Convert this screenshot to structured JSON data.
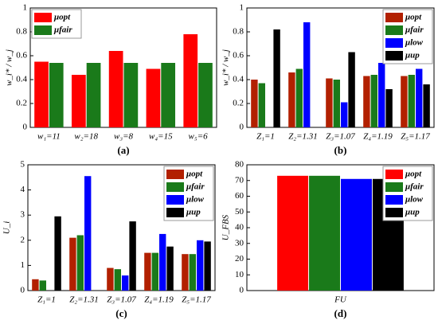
{
  "chart_data": [
    {
      "type": "bar",
      "caption": "(a)",
      "y_label": "w_i* / w_j",
      "categories": [
        "w₁=11",
        "w₂=18",
        "w₃=8",
        "w₄=15",
        "w₅=6"
      ],
      "series": [
        {
          "name": "μopt",
          "color": "#ff0000",
          "values": [
            0.55,
            0.44,
            0.64,
            0.49,
            0.78
          ]
        },
        {
          "name": "μfair",
          "color": "#1a7a1a",
          "values": [
            0.54,
            0.54,
            0.54,
            0.54,
            0.54
          ]
        }
      ],
      "ylim": [
        0,
        1
      ],
      "yticks": [
        0,
        0.2,
        0.4,
        0.6,
        0.8,
        1
      ],
      "legend": "upper left"
    },
    {
      "type": "bar",
      "caption": "(b)",
      "y_label": "w_i* / w_j",
      "categories": [
        "Z₁=1",
        "Z₂=1.31",
        "Z₃=1.07",
        "Z₄=1.19",
        "Z₅=1.17"
      ],
      "series": [
        {
          "name": "μopt",
          "color": "#b22000",
          "values": [
            0.4,
            0.46,
            0.41,
            0.43,
            0.43
          ]
        },
        {
          "name": "μfair",
          "color": "#1a7a1a",
          "values": [
            0.37,
            0.49,
            0.4,
            0.44,
            0.44
          ]
        },
        {
          "name": "μlow",
          "color": "#0000ff",
          "values": [
            null,
            0.88,
            0.21,
            0.54,
            0.49
          ]
        },
        {
          "name": "μup",
          "color": "#000000",
          "values": [
            0.82,
            null,
            0.63,
            0.32,
            0.36
          ]
        }
      ],
      "ylim": [
        0,
        1
      ],
      "yticks": [
        0,
        0.2,
        0.4,
        0.6,
        0.8,
        1
      ],
      "legend": "upper right"
    },
    {
      "type": "bar",
      "caption": "(c)",
      "y_label": "U_i",
      "categories": [
        "Z₁=1",
        "Z₂=1.31",
        "Z₃=1.07",
        "Z₄=1.19",
        "Z₅=1.17"
      ],
      "series": [
        {
          "name": "μopt",
          "color": "#b22000",
          "values": [
            0.45,
            2.1,
            0.9,
            1.5,
            1.45
          ]
        },
        {
          "name": "μfair",
          "color": "#1a7a1a",
          "values": [
            0.4,
            2.2,
            0.85,
            1.5,
            1.45
          ]
        },
        {
          "name": "μlow",
          "color": "#0000ff",
          "values": [
            null,
            4.55,
            0.6,
            2.25,
            2.0
          ]
        },
        {
          "name": "μup",
          "color": "#000000",
          "values": [
            2.95,
            null,
            2.75,
            1.75,
            1.95
          ]
        }
      ],
      "ylim": [
        0,
        5
      ],
      "yticks": [
        0,
        1,
        2,
        3,
        4,
        5
      ],
      "legend": "upper right"
    },
    {
      "type": "bar",
      "caption": "(d)",
      "y_label": "U_FBS",
      "categories": [
        "FU"
      ],
      "series": [
        {
          "name": "μopt",
          "color": "#ff0000",
          "values": [
            73
          ]
        },
        {
          "name": "μfair",
          "color": "#1a7a1a",
          "values": [
            73
          ]
        },
        {
          "name": "μlow",
          "color": "#0000ff",
          "values": [
            71
          ]
        },
        {
          "name": "μup",
          "color": "#000000",
          "values": [
            71
          ]
        }
      ],
      "ylim": [
        0,
        80
      ],
      "yticks": [
        0,
        10,
        20,
        30,
        40,
        50,
        60,
        70,
        80
      ],
      "legend": "upper right"
    }
  ]
}
